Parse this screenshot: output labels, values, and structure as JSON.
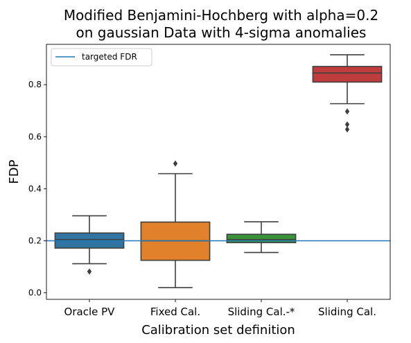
{
  "chart_data": {
    "type": "box",
    "title_lines": [
      "Modified Benjamini-Hochberg with alpha=0.2",
      "on gaussian Data with 4-sigma anomalies"
    ],
    "xlabel": "Calibration set definition",
    "ylabel": "FDP",
    "ylim": [
      -0.025,
      0.955
    ],
    "yticks": [
      0.0,
      0.2,
      0.4,
      0.6,
      0.8
    ],
    "ytick_labels": [
      "0.0",
      "0.2",
      "0.4",
      "0.6",
      "0.8"
    ],
    "grid": false,
    "legend_position": "upper-left",
    "reference_line": {
      "label": "targeted FDR",
      "value": 0.2,
      "color": "#1f77b4"
    },
    "categories": [
      "Oracle PV",
      "Fixed Cal.",
      "Sliding Cal.-*",
      "Sliding Cal."
    ],
    "boxes": [
      {
        "category": "Oracle PV",
        "color": "#3274a1",
        "whisker_low": 0.112,
        "q1": 0.172,
        "median": 0.205,
        "q3": 0.23,
        "whisker_high": 0.296,
        "outliers": [
          0.082
        ]
      },
      {
        "category": "Fixed Cal.",
        "color": "#e1812c",
        "whisker_low": 0.02,
        "q1": 0.125,
        "median": 0.2,
        "q3": 0.272,
        "whisker_high": 0.458,
        "outliers": [
          0.497
        ]
      },
      {
        "category": "Sliding Cal.-*",
        "color": "#3a923a",
        "whisker_low": 0.155,
        "q1": 0.193,
        "median": 0.205,
        "q3": 0.225,
        "whisker_high": 0.273,
        "outliers": []
      },
      {
        "category": "Sliding Cal.",
        "color": "#c03d3e",
        "whisker_low": 0.727,
        "q1": 0.81,
        "median": 0.845,
        "q3": 0.87,
        "whisker_high": 0.915,
        "outliers": [
          0.697,
          0.647,
          0.628
        ]
      }
    ]
  }
}
